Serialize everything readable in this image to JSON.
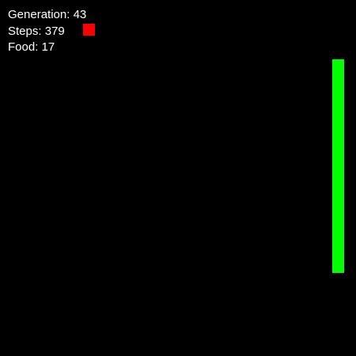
{
  "hud": {
    "generation_label": "Generation:",
    "generation_value": "43",
    "steps_label": "Steps:",
    "steps_value": "379",
    "food_label": "Food:",
    "food_value": "17"
  },
  "colors": {
    "background": "#000000",
    "text": "#ffffff",
    "food": "#ff0000",
    "snake": "#00ff00"
  },
  "icons": {
    "food": "food-square-icon",
    "snake": "snake-body"
  }
}
